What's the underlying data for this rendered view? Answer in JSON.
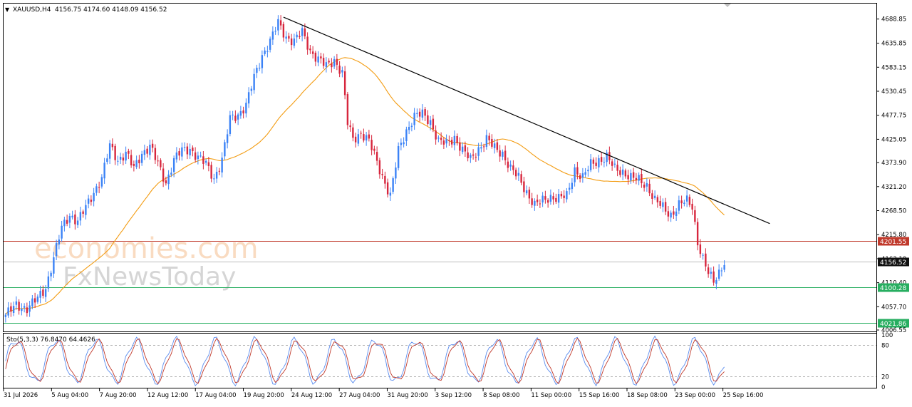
{
  "header": {
    "menu_glyph": "▼",
    "symbol": "XAUUSD,H4",
    "ohlc": "4156.75 4174.60 4148.09 4156.52"
  },
  "stochastic": {
    "label": "Sto(5,3,3) 76.8470 64.4626",
    "levels": [
      100,
      80,
      20,
      0
    ]
  },
  "watermark": {
    "line1": "economies.com",
    "line2": "FxNewsToday"
  },
  "colors": {
    "bull": "#3b82f6",
    "bear": "#d7263d",
    "ma": "#f39c12",
    "trendline": "#000000",
    "resistance": "#c0392b",
    "support": "#27ae60",
    "current": "#111111",
    "sto_main": "#5b8def",
    "sto_signal": "#c0392b"
  },
  "chart_data": {
    "type": "candlestick",
    "title": "XAUUSD,H4",
    "ylim": [
      4006.55,
      4715
    ],
    "y_ticks": [
      4688.85,
      4635.85,
      4583.15,
      4530.45,
      4477.75,
      4425.05,
      4373.9,
      4321.2,
      4268.5,
      4215.8,
      4163.1,
      4110.4,
      4057.7,
      4006.55
    ],
    "x_labels": [
      "31 Jul 2026",
      "5 Aug 04:00",
      "7 Aug 20:00",
      "12 Aug 12:00",
      "17 Aug 04:00",
      "19 Aug 20:00",
      "24 Aug 12:00",
      "27 Aug 04:00",
      "31 Aug 20:00",
      "3 Sep 12:00",
      "8 Sep 08:00",
      "11 Sep 00:00",
      "15 Sep 16:00",
      "18 Sep 08:00",
      "23 Sep 00:00",
      "25 Sep 16:00"
    ],
    "levels": [
      {
        "name": "resistance",
        "value": 4201.55,
        "label": "4201.55"
      },
      {
        "name": "current",
        "value": 4156.52,
        "label": "4156.52"
      },
      {
        "name": "support-1",
        "value": 4100.28,
        "label": "4100.28"
      },
      {
        "name": "support-2",
        "value": 4021.86,
        "label": "4021.86"
      }
    ],
    "trendline": {
      "start": {
        "bar": 104,
        "price": 4693
      },
      "end": {
        "bar": 286,
        "price": 4240
      }
    },
    "close_anchors": [
      [
        0,
        4040
      ],
      [
        4,
        4060
      ],
      [
        8,
        4055
      ],
      [
        12,
        4075
      ],
      [
        15,
        4100
      ],
      [
        18,
        4165
      ],
      [
        21,
        4230
      ],
      [
        24,
        4260
      ],
      [
        27,
        4245
      ],
      [
        30,
        4275
      ],
      [
        33,
        4310
      ],
      [
        36,
        4340
      ],
      [
        39,
        4410
      ],
      [
        42,
        4380
      ],
      [
        45,
        4395
      ],
      [
        48,
        4360
      ],
      [
        51,
        4395
      ],
      [
        54,
        4410
      ],
      [
        57,
        4370
      ],
      [
        60,
        4330
      ],
      [
        63,
        4380
      ],
      [
        66,
        4400
      ],
      [
        69,
        4405
      ],
      [
        72,
        4385
      ],
      [
        75,
        4370
      ],
      [
        78,
        4340
      ],
      [
        81,
        4380
      ],
      [
        84,
        4470
      ],
      [
        87,
        4480
      ],
      [
        90,
        4500
      ],
      [
        93,
        4560
      ],
      [
        96,
        4610
      ],
      [
        99,
        4640
      ],
      [
        102,
        4680
      ],
      [
        105,
        4650
      ],
      [
        108,
        4640
      ],
      [
        111,
        4660
      ],
      [
        114,
        4620
      ],
      [
        117,
        4600
      ],
      [
        120,
        4585
      ],
      [
        123,
        4600
      ],
      [
        126,
        4570
      ],
      [
        128,
        4460
      ],
      [
        130,
        4425
      ],
      [
        133,
        4440
      ],
      [
        136,
        4420
      ],
      [
        139,
        4375
      ],
      [
        142,
        4330
      ],
      [
        144,
        4300
      ],
      [
        147,
        4400
      ],
      [
        150,
        4445
      ],
      [
        153,
        4475
      ],
      [
        156,
        4480
      ],
      [
        159,
        4465
      ],
      [
        162,
        4420
      ],
      [
        165,
        4415
      ],
      [
        168,
        4430
      ],
      [
        171,
        4400
      ],
      [
        174,
        4380
      ],
      [
        177,
        4405
      ],
      [
        180,
        4425
      ],
      [
        183,
        4405
      ],
      [
        186,
        4395
      ],
      [
        189,
        4360
      ],
      [
        192,
        4340
      ],
      [
        195,
        4310
      ],
      [
        198,
        4280
      ],
      [
        201,
        4290
      ],
      [
        204,
        4300
      ],
      [
        207,
        4295
      ],
      [
        210,
        4300
      ],
      [
        213,
        4360
      ],
      [
        216,
        4340
      ],
      [
        219,
        4370
      ],
      [
        222,
        4380
      ],
      [
        225,
        4385
      ],
      [
        228,
        4360
      ],
      [
        231,
        4355
      ],
      [
        234,
        4340
      ],
      [
        237,
        4335
      ],
      [
        240,
        4325
      ],
      [
        243,
        4290
      ],
      [
        246,
        4275
      ],
      [
        249,
        4260
      ],
      [
        252,
        4280
      ],
      [
        255,
        4290
      ],
      [
        257,
        4280
      ],
      [
        259,
        4200
      ],
      [
        261,
        4160
      ],
      [
        263,
        4130
      ],
      [
        265,
        4115
      ],
      [
        267,
        4135
      ],
      [
        269,
        4155
      ]
    ],
    "bars": 270,
    "price_unit": "USD"
  }
}
